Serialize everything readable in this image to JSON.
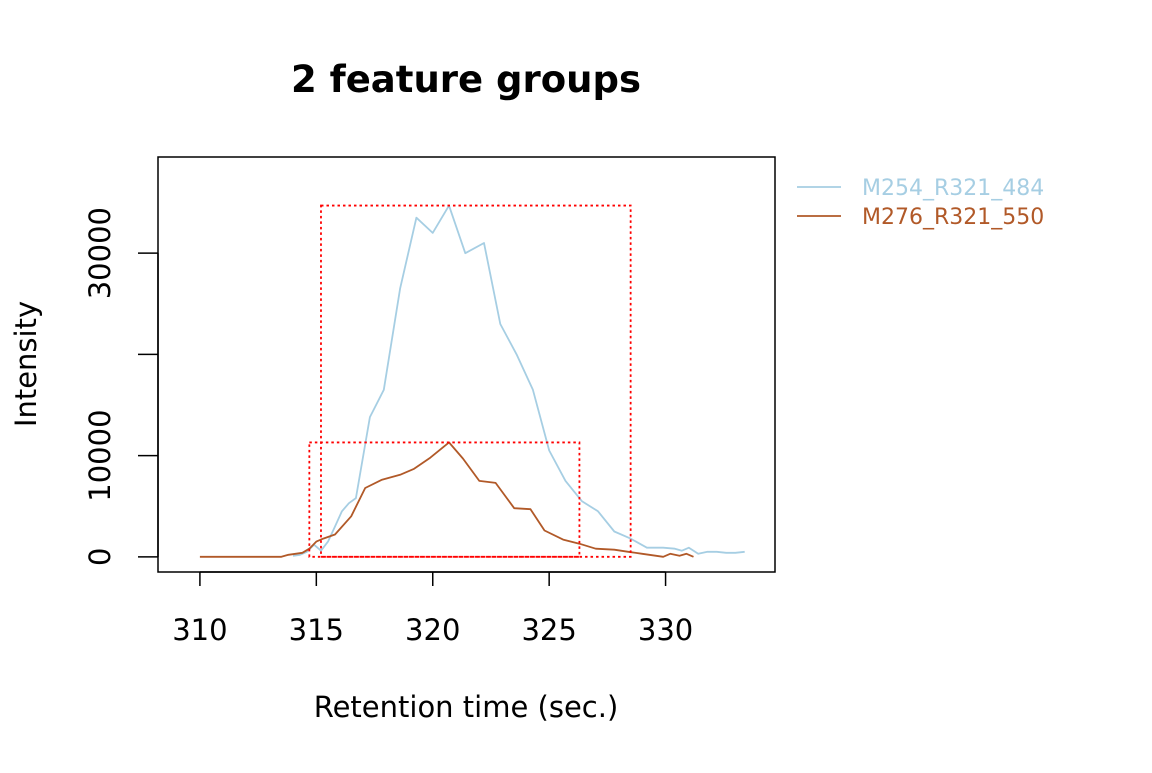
{
  "chart_data": {
    "type": "line",
    "title": "2 feature groups",
    "xlabel": "Retention time (sec.)",
    "ylabel": "Intensity",
    "xlim": [
      308.2,
      334.7
    ],
    "ylim": [
      -1500,
      39500
    ],
    "x_ticks": [
      310,
      315,
      320,
      325,
      330
    ],
    "x_tick_labels": [
      "310",
      "315",
      "320",
      "325",
      "330"
    ],
    "y_ticks": [
      0,
      10000,
      20000,
      30000
    ],
    "y_tick_labels": [
      "0",
      "10000",
      "",
      "30000"
    ],
    "grid": false,
    "legend_position": "right",
    "series": [
      {
        "name": "M254_R321_484",
        "color": "#a6cee3",
        "x": [
          314.0,
          314.3,
          314.6,
          314.9,
          315.2,
          315.5,
          315.8,
          316.1,
          316.4,
          316.7,
          317.3,
          317.9,
          318.6,
          319.3,
          320.0,
          320.7,
          321.4,
          322.2,
          322.9,
          323.6,
          324.3,
          325.0,
          325.7,
          326.4,
          327.1,
          327.8,
          328.5,
          329.2,
          329.9,
          330.4,
          330.7,
          331.0,
          331.4,
          331.8,
          332.2,
          332.6,
          333.0,
          333.4
        ],
        "y": [
          100,
          200,
          500,
          1200,
          600,
          1500,
          3000,
          4500,
          5300,
          5800,
          13800,
          16500,
          26500,
          33500,
          32000,
          34700,
          30000,
          31000,
          23000,
          20000,
          16500,
          10500,
          7500,
          5500,
          4500,
          2500,
          1800,
          900,
          900,
          800,
          600,
          900,
          300,
          500,
          500,
          400,
          400,
          500
        ]
      },
      {
        "name": "M276_R321_550",
        "color": "#b15928",
        "x": [
          310.0,
          311.0,
          312.0,
          313.0,
          313.5,
          313.8,
          314.1,
          314.4,
          314.7,
          315.0,
          315.3,
          315.8,
          316.5,
          317.1,
          317.8,
          318.6,
          319.2,
          319.9,
          320.7,
          321.3,
          322.0,
          322.7,
          323.5,
          324.2,
          324.8,
          325.6,
          326.3,
          327.0,
          327.8,
          328.4,
          329.0,
          329.6,
          329.9,
          330.2,
          330.6,
          330.9,
          331.2
        ],
        "y": [
          0,
          0,
          0,
          0,
          0,
          200,
          300,
          400,
          800,
          1500,
          1800,
          2200,
          4000,
          6800,
          7600,
          8100,
          8700,
          9800,
          11300,
          9700,
          7500,
          7300,
          4800,
          4700,
          2600,
          1700,
          1300,
          800,
          700,
          500,
          300,
          100,
          0,
          300,
          100,
          300,
          0
        ]
      }
    ],
    "peak_boxes": [
      {
        "color": "#ff0000",
        "x": [
          315.2,
          328.5
        ],
        "y": [
          0,
          34700
        ]
      },
      {
        "color": "#ff0000",
        "x": [
          314.7,
          326.3
        ],
        "y": [
          0,
          11300
        ]
      }
    ]
  }
}
